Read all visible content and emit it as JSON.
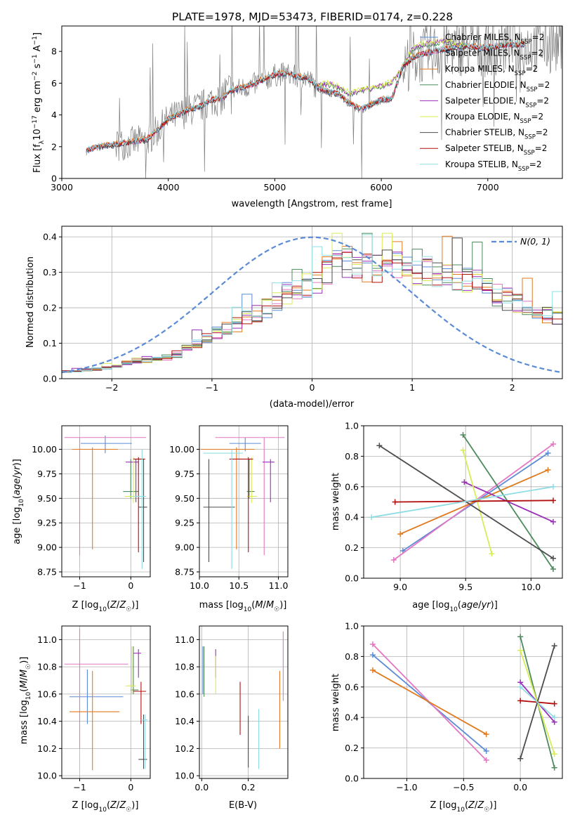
{
  "figure_title": "PLATE=1978, MJD=53473, FIBERID=0174, z=0.228",
  "colors": {
    "Chabrier MILES": "#5b8bd6",
    "Salpeter MILES": "#e377c2",
    "Kroupa MILES": "#e07a1f",
    "Chabrier ELODIE": "#4e8a5e",
    "Salpeter ELODIE": "#9a2fb8",
    "Kroupa ELODIE": "#d8ec55",
    "Chabrier STELIB": "#4d4d4d",
    "Salpeter STELIB": "#b30f0f",
    "Kroupa STELIB": "#8fdde3",
    "data": "#7f7f7f",
    "normal": "#5b8bd6",
    "grid": "#b0b0b0"
  },
  "chart_data": [
    {
      "id": "spectrum",
      "type": "line",
      "title": "PLATE=1978, MJD=53473, FIBERID=0174, z=0.228",
      "xlabel": "wavelength [Angstrom, rest frame]",
      "ylabel": "Flux [f_λ10^-17 erg cm^-2 s^-1 A^-1]",
      "xlim": [
        3000,
        7700
      ],
      "ylim": [
        0,
        9.6
      ],
      "xticks": [
        3000,
        4000,
        5000,
        6000,
        7000
      ],
      "yticks": [
        0,
        2,
        4,
        6,
        8
      ],
      "grid": false,
      "legend_position": "top-right",
      "legend": [
        "Chabrier MILES, N_SSP=2",
        "Salpeter MILES, N_SSP=2",
        "Kroupa MILES, N_SSP=2",
        "Chabrier ELODIE, N_SSP=2",
        "Salpeter ELODIE, N_SSP=2",
        "Kroupa ELODIE, N_SSP=2",
        "Chabrier STELIB, N_SSP=2",
        "Salpeter STELIB, N_SSP=2",
        "Kroupa STELIB, N_SSP=2"
      ],
      "model_curve_approx": {
        "x": [
          3230,
          3300,
          3400,
          3500,
          3600,
          3700,
          3800,
          3900,
          4000,
          4100,
          4200,
          4300,
          4400,
          4500,
          4600,
          4700,
          4800,
          4900,
          5000,
          5100,
          5200,
          5300,
          5400,
          5500,
          5600,
          5700,
          5800,
          5900,
          6000,
          6100,
          6200,
          6300,
          6400,
          6500,
          6600,
          6700,
          6800,
          6900,
          7000,
          7100,
          7200,
          7300
        ],
        "y": [
          1.7,
          1.9,
          2.0,
          2.1,
          2.2,
          2.3,
          2.4,
          3.0,
          3.7,
          4.0,
          4.3,
          4.5,
          4.9,
          5.0,
          5.5,
          5.7,
          5.9,
          6.2,
          6.5,
          6.6,
          6.4,
          6.3,
          5.7,
          5.4,
          5.3,
          4.7,
          4.3,
          4.6,
          4.9,
          5.0,
          7.0,
          7.6,
          7.8,
          8.0,
          8.1,
          8.2,
          8.3,
          8.2,
          8.2,
          8.3,
          8.4,
          8.4
        ]
      },
      "elodie_curve_approx": {
        "x": [
          5400,
          5500,
          5600,
          5700,
          5800,
          5900,
          6000,
          6100,
          6200,
          6300,
          6400,
          6500,
          6600,
          6700,
          6800
        ],
        "y": [
          5.8,
          5.9,
          5.7,
          5.3,
          5.5,
          5.6,
          5.8,
          6.0,
          6.9,
          8.2,
          8.4,
          8.5,
          8.6,
          8.4,
          8.3
        ]
      }
    },
    {
      "id": "residuals",
      "type": "bar",
      "xlabel": "(data-model)/error",
      "ylabel": "Normed distribution",
      "xlim": [
        -2.5,
        2.5
      ],
      "ylim": [
        0,
        0.43
      ],
      "xticks": [
        -2,
        -1,
        0,
        1,
        2
      ],
      "yticks": [
        0.0,
        0.1,
        0.2,
        0.3,
        0.4
      ],
      "grid": true,
      "legend_position": "top-right",
      "legend": [
        "N(0, 1)"
      ],
      "bin_centers": [
        -2.4,
        -2.2,
        -2.0,
        -1.8,
        -1.6,
        -1.4,
        -1.2,
        -1.0,
        -0.8,
        -0.6,
        -0.4,
        -0.2,
        0.0,
        0.2,
        0.4,
        0.6,
        0.8,
        1.0,
        1.2,
        1.4,
        1.6,
        1.8,
        2.0,
        2.2,
        2.4
      ],
      "histogram_envelope_approx": [
        0.02,
        0.025,
        0.03,
        0.05,
        0.05,
        0.06,
        0.09,
        0.12,
        0.14,
        0.17,
        0.2,
        0.24,
        0.26,
        0.31,
        0.32,
        0.3,
        0.31,
        0.3,
        0.29,
        0.28,
        0.27,
        0.24,
        0.21,
        0.19,
        0.17
      ]
    },
    {
      "id": "age_vs_Z",
      "type": "scatter",
      "xlabel": "Z [log10(Z/Z☉)]",
      "ylabel": "age [log10(age/yr)]",
      "xlim": [
        -1.35,
        0.38
      ],
      "ylim": [
        8.7,
        10.24
      ],
      "xticks": [
        -1,
        0
      ],
      "yticks": [
        8.75,
        9.0,
        9.25,
        9.5,
        9.75,
        10.0
      ],
      "grid": true
    },
    {
      "id": "age_vs_mass",
      "type": "scatter",
      "xlabel": "mass [log10(M/M☉)]",
      "ylabel": "",
      "xlim": [
        10.0,
        11.12
      ],
      "ylim": [
        8.7,
        10.24
      ],
      "xticks": [
        10.0,
        10.5,
        11.0
      ],
      "yticks": [
        8.75,
        9.0,
        9.25,
        9.5,
        9.75,
        10.0
      ],
      "grid": true
    },
    {
      "id": "mass_weight_vs_age",
      "type": "line",
      "xlabel": "age [log10(age/yr)]",
      "ylabel": "mass weight",
      "xlim": [
        8.72,
        10.24
      ],
      "ylim": [
        0.0,
        1.0
      ],
      "xticks": [
        9.0,
        9.5,
        10.0
      ],
      "yticks": [
        0.0,
        0.2,
        0.4,
        0.6,
        0.8,
        1.0
      ],
      "grid": true,
      "series": [
        {
          "key": "Chabrier MILES",
          "x": [
            9.02,
            10.13
          ],
          "y": [
            0.18,
            0.82
          ]
        },
        {
          "key": "Salpeter MILES",
          "x": [
            8.95,
            10.17
          ],
          "y": [
            0.12,
            0.88
          ]
        },
        {
          "key": "Kroupa MILES",
          "x": [
            9.0,
            10.13
          ],
          "y": [
            0.29,
            0.71
          ]
        },
        {
          "key": "Chabrier ELODIE",
          "x": [
            9.48,
            10.17
          ],
          "y": [
            0.94,
            0.06
          ]
        },
        {
          "key": "Salpeter ELODIE",
          "x": [
            9.49,
            10.17
          ],
          "y": [
            0.63,
            0.37
          ]
        },
        {
          "key": "Kroupa ELODIE",
          "x": [
            9.48,
            9.7
          ],
          "y": [
            0.84,
            0.16
          ]
        },
        {
          "key": "Chabrier STELIB",
          "x": [
            8.84,
            10.17
          ],
          "y": [
            0.87,
            0.13
          ]
        },
        {
          "key": "Salpeter STELIB",
          "x": [
            8.96,
            10.17
          ],
          "y": [
            0.5,
            0.51
          ]
        },
        {
          "key": "Kroupa STELIB",
          "x": [
            8.78,
            10.17
          ],
          "y": [
            0.4,
            0.6
          ]
        }
      ]
    },
    {
      "id": "mass_vs_Z",
      "type": "scatter",
      "xlabel": "Z [log10(Z/Z☉)]",
      "ylabel": "mass [log10(M/M☉)]",
      "xlim": [
        -1.35,
        0.38
      ],
      "ylim": [
        9.98,
        11.1
      ],
      "xticks": [
        -1,
        0
      ],
      "yticks": [
        10.0,
        10.2,
        10.4,
        10.6,
        10.8,
        11.0
      ],
      "grid": true
    },
    {
      "id": "mass_vs_ebv",
      "type": "scatter",
      "xlabel": "E(B-V)",
      "ylabel": "",
      "xlim": [
        -0.01,
        0.37
      ],
      "ylim": [
        9.98,
        11.1
      ],
      "xticks": [
        0.0,
        0.2
      ],
      "yticks": [
        10.0,
        10.2,
        10.4,
        10.6,
        10.8,
        11.0
      ],
      "grid": true
    },
    {
      "id": "mass_weight_vs_Z",
      "type": "line",
      "xlabel": "Z [log10(Z/Z☉)]",
      "ylabel": "mass weight",
      "xlim": [
        -1.38,
        0.37
      ],
      "ylim": [
        0.0,
        1.0
      ],
      "xticks": [
        -1.0,
        -0.5,
        0.0
      ],
      "yticks": [
        0.0,
        0.2,
        0.4,
        0.6,
        0.8,
        1.0
      ],
      "grid": true,
      "series": [
        {
          "key": "Chabrier MILES",
          "x": [
            -1.3,
            -0.3
          ],
          "y": [
            0.81,
            0.18
          ]
        },
        {
          "key": "Salpeter MILES",
          "x": [
            -1.3,
            -0.3
          ],
          "y": [
            0.88,
            0.12
          ]
        },
        {
          "key": "Kroupa MILES",
          "x": [
            -1.3,
            -0.3
          ],
          "y": [
            0.71,
            0.29
          ]
        },
        {
          "key": "Chabrier ELODIE",
          "x": [
            0.0,
            0.3
          ],
          "y": [
            0.93,
            0.07
          ]
        },
        {
          "key": "Salpeter ELODIE",
          "x": [
            0.0,
            0.3
          ],
          "y": [
            0.63,
            0.37
          ]
        },
        {
          "key": "Kroupa ELODIE",
          "x": [
            0.0,
            0.3
          ],
          "y": [
            0.84,
            0.16
          ]
        },
        {
          "key": "Chabrier STELIB",
          "x": [
            0.0,
            0.3
          ],
          "y": [
            0.13,
            0.87
          ]
        },
        {
          "key": "Salpeter STELIB",
          "x": [
            0.0,
            0.3
          ],
          "y": [
            0.51,
            0.49
          ]
        },
        {
          "key": "Kroupa STELIB",
          "x": [
            0.0,
            0.3
          ],
          "y": [
            0.6,
            0.4
          ]
        }
      ]
    }
  ]
}
